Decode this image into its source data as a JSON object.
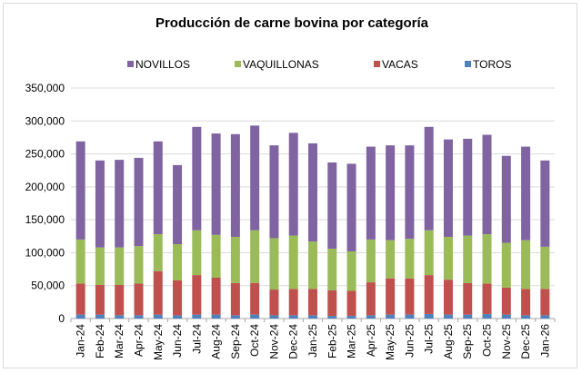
{
  "chart_data": {
    "type": "bar",
    "stacked": true,
    "title": "Producción de carne bovina por categoría",
    "xlabel": "",
    "ylabel": "",
    "ylim": [
      0,
      350000
    ],
    "yticks": [
      0,
      50000,
      100000,
      150000,
      200000,
      250000,
      300000,
      350000
    ],
    "ytick_labels": [
      "0",
      "50,000",
      "100,000",
      "150,000",
      "200,000",
      "250,000",
      "300,000",
      "350,000"
    ],
    "grid": true,
    "legend_position": "top",
    "categories": [
      "Jan-24",
      "Feb-24",
      "Mar-24",
      "Apr-24",
      "May-24",
      "Jun-24",
      "Jul-24",
      "Aug-24",
      "Sep-24",
      "Oct-24",
      "Nov-24",
      "Dec-24",
      "Jan-25",
      "Feb-25",
      "Mar-25",
      "Apr-25",
      "May-25",
      "Jun-25",
      "Jul-25",
      "Aug-25",
      "Sep-25",
      "Oct-25",
      "Nov-25",
      "Dec-25",
      "Jan-26"
    ],
    "series": [
      {
        "name": "TOROS",
        "color": "#4f81bd",
        "values": [
          6000,
          6000,
          5000,
          5000,
          6000,
          5000,
          6000,
          6000,
          5000,
          6000,
          5000,
          5000,
          5000,
          4000,
          4000,
          5000,
          6000,
          6000,
          7000,
          6000,
          6000,
          7000,
          6000,
          5000,
          5000
        ]
      },
      {
        "name": "VACAS",
        "color": "#c0504d",
        "values": [
          47000,
          45000,
          46000,
          48000,
          66000,
          53000,
          60000,
          56000,
          49000,
          48000,
          39000,
          40000,
          40000,
          39000,
          38000,
          50000,
          55000,
          55000,
          59000,
          53000,
          48000,
          46000,
          41000,
          40000,
          40000
        ]
      },
      {
        "name": "VAQUILLONAS",
        "color": "#9bbb59",
        "values": [
          67000,
          57000,
          57000,
          57000,
          56000,
          55000,
          68000,
          65000,
          70000,
          80000,
          78000,
          81000,
          72000,
          63000,
          60000,
          65000,
          58000,
          60000,
          68000,
          65000,
          72000,
          75000,
          68000,
          74000,
          64000
        ]
      },
      {
        "name": "NOVILLOS",
        "color": "#8064a2",
        "values": [
          149000,
          132000,
          133000,
          134000,
          141000,
          120000,
          157000,
          154000,
          156000,
          159000,
          141000,
          156000,
          149000,
          131000,
          133000,
          141000,
          144000,
          142000,
          157000,
          148000,
          147000,
          151000,
          132000,
          142000,
          131000
        ]
      }
    ],
    "legend_order": [
      "NOVILLOS",
      "VAQUILLONAS",
      "VACAS",
      "TOROS"
    ]
  }
}
